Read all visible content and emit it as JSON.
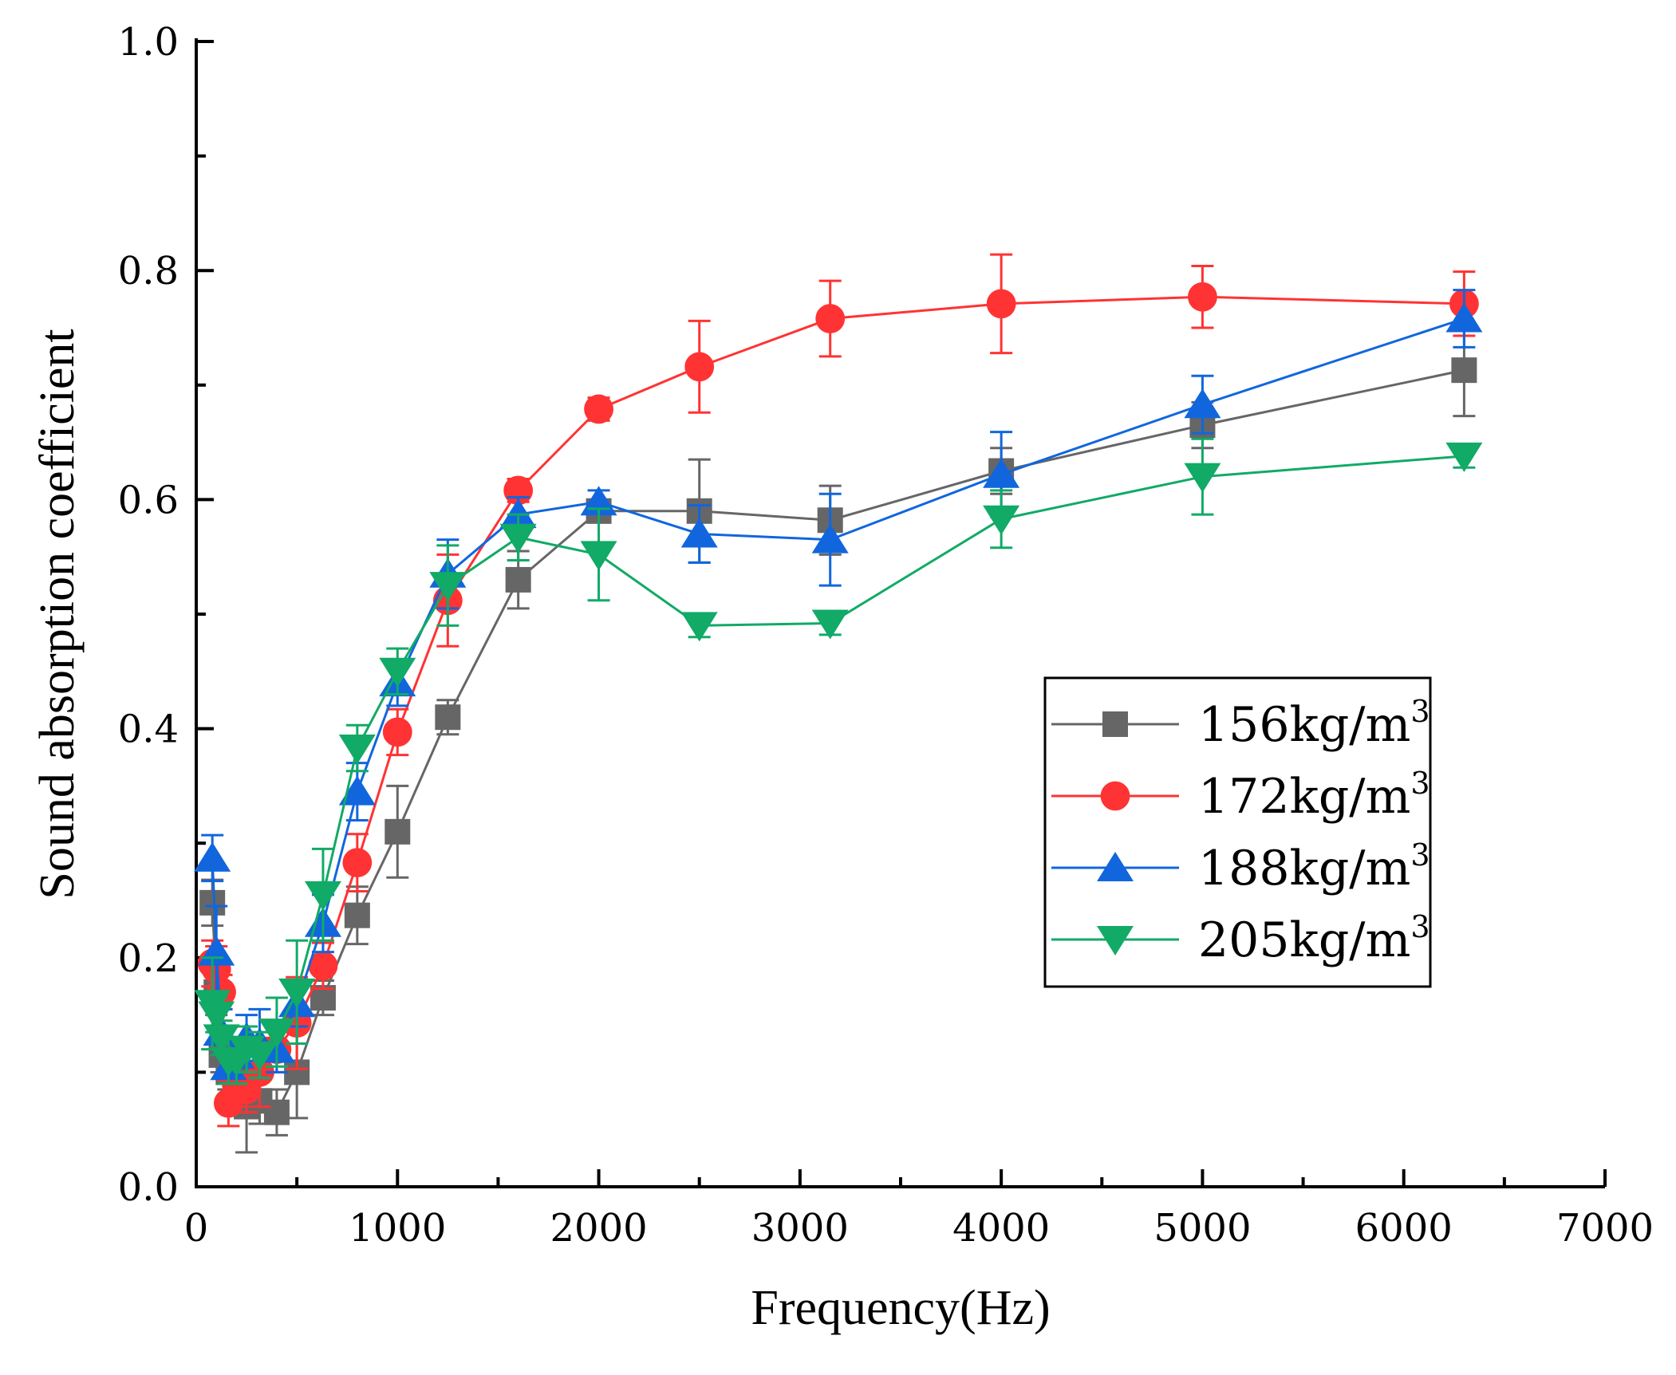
{
  "chart_data": {
    "type": "line",
    "xlabel": "Frequency(Hz)",
    "ylabel": "Sound absorption coefficient",
    "xlim": [
      0,
      7000
    ],
    "ylim": [
      0,
      1.0
    ],
    "x_ticks": [
      0,
      1000,
      2000,
      3000,
      4000,
      5000,
      6000,
      7000
    ],
    "x_tick_labels": [
      "0",
      "1000",
      "2000",
      "3000",
      "4000",
      "5000",
      "6000",
      "7000"
    ],
    "y_ticks": [
      0,
      0.2,
      0.4,
      0.6,
      0.8,
      1.0
    ],
    "y_tick_labels": [
      "0.0",
      "0.2",
      "0.4",
      "0.6",
      "0.8",
      "1.0"
    ],
    "grid": false,
    "legend_position": "center-right",
    "x": [
      80,
      100,
      125,
      160,
      200,
      250,
      315,
      400,
      500,
      630,
      800,
      1000,
      1250,
      1600,
      2000,
      2500,
      3150,
      4000,
      5000,
      6300
    ],
    "series": [
      {
        "name": "156kg/m",
        "name_superscript": "3",
        "color": "#666666",
        "marker": "square",
        "values": [
          0.248,
          0.17,
          0.115,
          0.1,
          0.1,
          0.07,
          0.075,
          0.065,
          0.1,
          0.165,
          0.237,
          0.31,
          0.41,
          0.53,
          0.59,
          0.59,
          0.582,
          0.625,
          0.665,
          0.713
        ],
        "errors": [
          0.02,
          0.02,
          0.015,
          0.015,
          0.015,
          0.04,
          0.02,
          0.02,
          0.04,
          0.015,
          0.025,
          0.04,
          0.015,
          0.025,
          0.01,
          0.045,
          0.03,
          0.02,
          0.02,
          0.04
        ]
      },
      {
        "name": "172kg/m",
        "name_superscript": "3",
        "color": "#ff3333",
        "marker": "circle",
        "values": [
          0.195,
          0.19,
          0.17,
          0.073,
          0.09,
          0.085,
          0.1,
          0.12,
          0.143,
          0.193,
          0.283,
          0.397,
          0.512,
          0.608,
          0.679,
          0.716,
          0.758,
          0.771,
          0.777,
          0.771
        ],
        "errors": [
          0.02,
          0.02,
          0.015,
          0.02,
          0.02,
          0.02,
          0.03,
          0.02,
          0.04,
          0.02,
          0.025,
          0.02,
          0.04,
          0.01,
          0.01,
          0.04,
          0.033,
          0.043,
          0.027,
          0.028
        ]
      },
      {
        "name": "188kg/m",
        "name_superscript": "3",
        "color": "#1166dd",
        "marker": "triangle-up",
        "values": [
          0.287,
          0.205,
          0.135,
          0.105,
          0.115,
          0.13,
          0.125,
          0.12,
          0.16,
          0.23,
          0.345,
          0.44,
          0.535,
          0.587,
          0.598,
          0.57,
          0.565,
          0.622,
          0.683,
          0.758
        ],
        "errors": [
          0.02,
          0.04,
          0.02,
          0.015,
          0.015,
          0.02,
          0.03,
          0.02,
          0.02,
          0.025,
          0.025,
          0.02,
          0.03,
          0.015,
          0.01,
          0.025,
          0.04,
          0.037,
          0.025,
          0.025
        ]
      },
      {
        "name": "205kg/m",
        "name_superscript": "3",
        "color": "#11aa66",
        "marker": "triangle-down",
        "values": [
          0.16,
          0.15,
          0.13,
          0.11,
          0.11,
          0.12,
          0.115,
          0.135,
          0.17,
          0.255,
          0.383,
          0.45,
          0.525,
          0.567,
          0.552,
          0.49,
          0.492,
          0.583,
          0.62,
          0.638
        ],
        "errors": [
          0.04,
          0.015,
          0.015,
          0.02,
          0.02,
          0.02,
          0.02,
          0.03,
          0.045,
          0.04,
          0.02,
          0.02,
          0.035,
          0.02,
          0.04,
          0.01,
          0.01,
          0.025,
          0.033,
          0.01
        ]
      }
    ]
  }
}
